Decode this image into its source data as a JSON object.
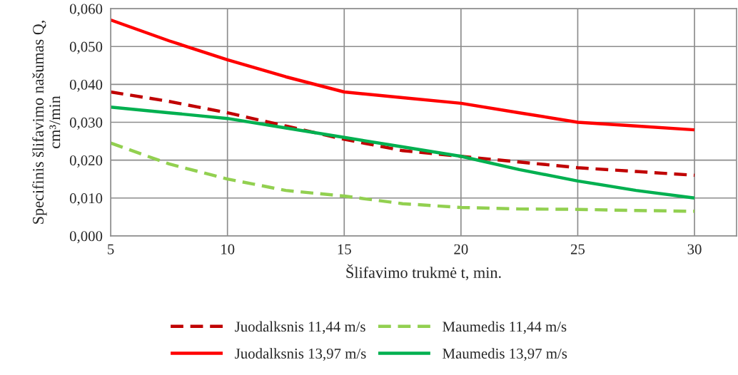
{
  "chart_data": {
    "type": "line",
    "xlabel": "Šlifavimo trukmė t, min.",
    "ylabel": "Specifinis šlifavimo našumas Q,\ncm³/min",
    "xlim": [
      5,
      31.8
    ],
    "xticks": [
      5,
      10,
      15,
      20,
      25,
      30
    ],
    "ylim": [
      0,
      0.06
    ],
    "yticks": [
      {
        "value": 0,
        "label": "0,000"
      },
      {
        "value": 0.01,
        "label": "0,010"
      },
      {
        "value": 0.02,
        "label": "0,020"
      },
      {
        "value": 0.03,
        "label": "0,030"
      },
      {
        "value": 0.04,
        "label": "0,040"
      },
      {
        "value": 0.05,
        "label": "0,050"
      },
      {
        "value": 0.06,
        "label": "0,060"
      }
    ],
    "grid": true,
    "legend": "bottom",
    "marker": "none",
    "series": [
      {
        "name": "Juodalksnis 11,44 m/s",
        "color": "#c00000",
        "line_style": "dashed",
        "x": [
          5,
          7.5,
          10,
          12.5,
          15,
          17.5,
          20,
          22.5,
          25,
          27.5,
          30
        ],
        "values": [
          0.038,
          0.0355,
          0.0325,
          0.029,
          0.0255,
          0.0225,
          0.021,
          0.0195,
          0.018,
          0.017,
          0.016
        ]
      },
      {
        "name": "Maumedis 11,44 m/s",
        "color": "#92d050",
        "line_style": "dashed",
        "x": [
          5,
          7.5,
          10,
          12.5,
          15,
          17.5,
          20,
          22.5,
          25,
          27.5,
          30
        ],
        "values": [
          0.0245,
          0.019,
          0.015,
          0.012,
          0.0105,
          0.0085,
          0.0075,
          0.0071,
          0.007,
          0.0067,
          0.0065
        ]
      },
      {
        "name": "Juodalksnis 13,97 m/s",
        "color": "#ff0000",
        "line_style": "solid",
        "x": [
          5,
          7.5,
          10,
          12.5,
          15,
          17.5,
          20,
          22.5,
          25,
          27.5,
          30
        ],
        "values": [
          0.057,
          0.0515,
          0.0465,
          0.042,
          0.038,
          0.0365,
          0.035,
          0.0325,
          0.03,
          0.029,
          0.028
        ]
      },
      {
        "name": "Maumedis 13,97 m/s",
        "color": "#00b050",
        "line_style": "solid",
        "x": [
          5,
          7.5,
          10,
          12.5,
          15,
          17.5,
          20,
          22.5,
          25,
          27.5,
          30
        ],
        "values": [
          0.034,
          0.0325,
          0.031,
          0.0285,
          0.026,
          0.0235,
          0.021,
          0.0175,
          0.0145,
          0.012,
          0.01
        ]
      }
    ]
  }
}
